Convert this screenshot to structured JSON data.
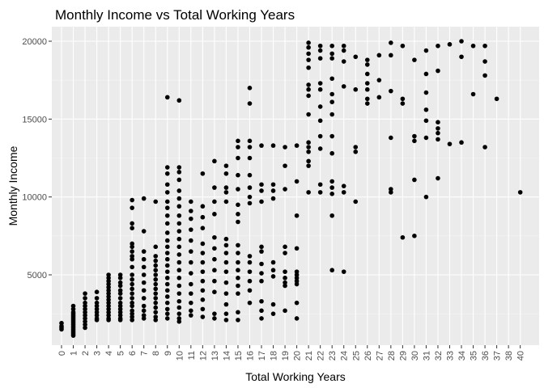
{
  "chart_data": {
    "type": "scatter",
    "title": "Monthly Income vs Total Working Years",
    "xlabel": "Total Working Years",
    "ylabel": "Monthly Income",
    "x_categories": [
      "0",
      "1",
      "2",
      "3",
      "4",
      "5",
      "6",
      "7",
      "8",
      "9",
      "10",
      "11",
      "12",
      "13",
      "14",
      "15",
      "16",
      "17",
      "18",
      "19",
      "20",
      "21",
      "22",
      "23",
      "24",
      "25",
      "26",
      "27",
      "28",
      "29",
      "30",
      "31",
      "32",
      "33",
      "34",
      "35",
      "36",
      "37",
      "38",
      "40"
    ],
    "y_ticks": [
      5000,
      10000,
      15000,
      20000
    ],
    "ylim": [
      1000,
      20000
    ],
    "grid": true,
    "background": "#EBEBEB",
    "point_color": "#000000",
    "points": [
      [
        "0",
        1900
      ],
      [
        "0",
        1700
      ],
      [
        "0",
        1600
      ],
      [
        "0",
        1500
      ],
      [
        "1",
        3000
      ],
      [
        "1",
        2800
      ],
      [
        "1",
        2600
      ],
      [
        "1",
        2500
      ],
      [
        "1",
        2400
      ],
      [
        "1",
        2300
      ],
      [
        "1",
        2200
      ],
      [
        "1",
        2100
      ],
      [
        "1",
        2000
      ],
      [
        "1",
        1900
      ],
      [
        "1",
        1800
      ],
      [
        "1",
        1700
      ],
      [
        "1",
        1600
      ],
      [
        "1",
        1500
      ],
      [
        "1",
        1400
      ],
      [
        "1",
        1300
      ],
      [
        "1",
        1200
      ],
      [
        "1",
        1100
      ],
      [
        "2",
        3800
      ],
      [
        "2",
        3500
      ],
      [
        "2",
        3200
      ],
      [
        "2",
        3000
      ],
      [
        "2",
        2800
      ],
      [
        "2",
        2600
      ],
      [
        "2",
        2400
      ],
      [
        "2",
        2200
      ],
      [
        "2",
        2000
      ],
      [
        "2",
        1800
      ],
      [
        "2",
        1600
      ],
      [
        "3",
        3900
      ],
      [
        "3",
        3500
      ],
      [
        "3",
        3200
      ],
      [
        "3",
        3000
      ],
      [
        "3",
        2800
      ],
      [
        "3",
        2600
      ],
      [
        "3",
        2400
      ],
      [
        "3",
        2200
      ],
      [
        "3",
        2100
      ],
      [
        "4",
        5000
      ],
      [
        "4",
        4800
      ],
      [
        "4",
        4600
      ],
      [
        "4",
        4400
      ],
      [
        "4",
        4200
      ],
      [
        "4",
        4000
      ],
      [
        "4",
        3800
      ],
      [
        "4",
        3600
      ],
      [
        "4",
        3400
      ],
      [
        "4",
        3200
      ],
      [
        "4",
        3000
      ],
      [
        "4",
        2800
      ],
      [
        "4",
        2600
      ],
      [
        "4",
        2400
      ],
      [
        "4",
        2200
      ],
      [
        "4",
        2100
      ],
      [
        "5",
        5000
      ],
      [
        "5",
        4800
      ],
      [
        "5",
        4500
      ],
      [
        "5",
        4300
      ],
      [
        "5",
        4000
      ],
      [
        "5",
        3800
      ],
      [
        "5",
        3500
      ],
      [
        "5",
        3200
      ],
      [
        "5",
        3000
      ],
      [
        "5",
        2800
      ],
      [
        "5",
        2600
      ],
      [
        "5",
        2400
      ],
      [
        "5",
        2200
      ],
      [
        "5",
        2100
      ],
      [
        "6",
        9800
      ],
      [
        "6",
        9300
      ],
      [
        "6",
        8300
      ],
      [
        "6",
        8000
      ],
      [
        "6",
        7000
      ],
      [
        "6",
        6800
      ],
      [
        "6",
        6500
      ],
      [
        "6",
        6200
      ],
      [
        "6",
        6000
      ],
      [
        "6",
        5500
      ],
      [
        "6",
        5000
      ],
      [
        "6",
        4700
      ],
      [
        "6",
        4400
      ],
      [
        "6",
        4100
      ],
      [
        "6",
        3800
      ],
      [
        "6",
        3500
      ],
      [
        "6",
        3200
      ],
      [
        "6",
        3000
      ],
      [
        "6",
        2700
      ],
      [
        "6",
        2500
      ],
      [
        "6",
        2300
      ],
      [
        "6",
        2100
      ],
      [
        "7",
        9900
      ],
      [
        "7",
        7800
      ],
      [
        "7",
        6500
      ],
      [
        "7",
        6000
      ],
      [
        "7",
        5500
      ],
      [
        "7",
        5000
      ],
      [
        "7",
        4500
      ],
      [
        "7",
        4000
      ],
      [
        "7",
        3500
      ],
      [
        "7",
        3000
      ],
      [
        "7",
        2700
      ],
      [
        "7",
        2400
      ],
      [
        "7",
        2200
      ],
      [
        "8",
        9700
      ],
      [
        "8",
        6800
      ],
      [
        "8",
        6200
      ],
      [
        "8",
        5900
      ],
      [
        "8",
        5600
      ],
      [
        "8",
        5300
      ],
      [
        "8",
        5000
      ],
      [
        "8",
        4700
      ],
      [
        "8",
        4400
      ],
      [
        "8",
        4100
      ],
      [
        "8",
        3800
      ],
      [
        "8",
        3500
      ],
      [
        "8",
        3200
      ],
      [
        "8",
        2900
      ],
      [
        "8",
        2600
      ],
      [
        "8",
        2300
      ],
      [
        "8",
        2100
      ],
      [
        "9",
        16400
      ],
      [
        "9",
        11900
      ],
      [
        "9",
        11500
      ],
      [
        "9",
        10800
      ],
      [
        "9",
        10300
      ],
      [
        "9",
        9700
      ],
      [
        "9",
        9300
      ],
      [
        "9",
        8800
      ],
      [
        "9",
        8300
      ],
      [
        "9",
        7700
      ],
      [
        "9",
        7200
      ],
      [
        "9",
        6800
      ],
      [
        "9",
        6400
      ],
      [
        "9",
        6000
      ],
      [
        "9",
        5600
      ],
      [
        "9",
        5200
      ],
      [
        "9",
        4800
      ],
      [
        "9",
        4400
      ],
      [
        "9",
        4000
      ],
      [
        "9",
        3600
      ],
      [
        "9",
        3200
      ],
      [
        "9",
        2800
      ],
      [
        "9",
        2500
      ],
      [
        "9",
        2200
      ],
      [
        "10",
        16200
      ],
      [
        "10",
        11900
      ],
      [
        "10",
        11600
      ],
      [
        "10",
        11100
      ],
      [
        "10",
        10400
      ],
      [
        "10",
        9900
      ],
      [
        "10",
        9400
      ],
      [
        "10",
        8800
      ],
      [
        "10",
        8300
      ],
      [
        "10",
        7800
      ],
      [
        "10",
        7300
      ],
      [
        "10",
        6800
      ],
      [
        "10",
        6300
      ],
      [
        "10",
        5800
      ],
      [
        "10",
        5300
      ],
      [
        "10",
        4800
      ],
      [
        "10",
        4300
      ],
      [
        "10",
        3800
      ],
      [
        "10",
        3300
      ],
      [
        "10",
        2900
      ],
      [
        "10",
        2500
      ],
      [
        "10",
        2200
      ],
      [
        "10",
        2000
      ],
      [
        "11",
        9700
      ],
      [
        "11",
        9100
      ],
      [
        "11",
        8600
      ],
      [
        "11",
        7900
      ],
      [
        "11",
        7200
      ],
      [
        "11",
        6500
      ],
      [
        "11",
        5800
      ],
      [
        "11",
        5100
      ],
      [
        "11",
        4400
      ],
      [
        "11",
        3800
      ],
      [
        "11",
        3200
      ],
      [
        "11",
        2700
      ],
      [
        "11",
        2400
      ],
      [
        "12",
        11500
      ],
      [
        "12",
        9400
      ],
      [
        "12",
        8700
      ],
      [
        "12",
        8000
      ],
      [
        "12",
        7000
      ],
      [
        "12",
        6400
      ],
      [
        "12",
        5800
      ],
      [
        "12",
        5200
      ],
      [
        "12",
        4600
      ],
      [
        "12",
        4000
      ],
      [
        "12",
        3400
      ],
      [
        "12",
        2800
      ],
      [
        "12",
        2300
      ],
      [
        "13",
        12300
      ],
      [
        "13",
        10600
      ],
      [
        "13",
        9700
      ],
      [
        "13",
        8900
      ],
      [
        "13",
        7400
      ],
      [
        "13",
        6700
      ],
      [
        "13",
        6000
      ],
      [
        "13",
        5300
      ],
      [
        "13",
        4600
      ],
      [
        "13",
        3900
      ],
      [
        "13",
        2500
      ],
      [
        "13",
        2200
      ],
      [
        "14",
        12000
      ],
      [
        "14",
        11500
      ],
      [
        "14",
        10600
      ],
      [
        "14",
        10300
      ],
      [
        "14",
        9700
      ],
      [
        "14",
        7300
      ],
      [
        "14",
        6900
      ],
      [
        "14",
        6400
      ],
      [
        "14",
        5800
      ],
      [
        "14",
        5200
      ],
      [
        "14",
        4500
      ],
      [
        "14",
        3800
      ],
      [
        "14",
        3100
      ],
      [
        "14",
        2500
      ],
      [
        "14",
        2100
      ],
      [
        "15",
        13600
      ],
      [
        "15",
        13200
      ],
      [
        "15",
        12500
      ],
      [
        "15",
        11400
      ],
      [
        "15",
        10500
      ],
      [
        "15",
        9500
      ],
      [
        "15",
        8900
      ],
      [
        "15",
        8400
      ],
      [
        "15",
        6900
      ],
      [
        "15",
        6400
      ],
      [
        "15",
        5800
      ],
      [
        "15",
        5300
      ],
      [
        "15",
        4800
      ],
      [
        "15",
        4300
      ],
      [
        "15",
        3800
      ],
      [
        "15",
        2600
      ],
      [
        "15",
        2100
      ],
      [
        "16",
        17000
      ],
      [
        "16",
        16000
      ],
      [
        "16",
        13600
      ],
      [
        "16",
        13200
      ],
      [
        "16",
        12500
      ],
      [
        "16",
        11400
      ],
      [
        "16",
        10600
      ],
      [
        "16",
        10000
      ],
      [
        "16",
        9600
      ],
      [
        "16",
        6200
      ],
      [
        "16",
        5800
      ],
      [
        "16",
        5200
      ],
      [
        "16",
        4600
      ],
      [
        "16",
        4000
      ],
      [
        "16",
        3200
      ],
      [
        "17",
        13300
      ],
      [
        "17",
        10800
      ],
      [
        "17",
        10400
      ],
      [
        "17",
        9700
      ],
      [
        "17",
        6800
      ],
      [
        "17",
        6500
      ],
      [
        "17",
        5700
      ],
      [
        "17",
        5100
      ],
      [
        "17",
        4600
      ],
      [
        "17",
        3300
      ],
      [
        "17",
        2700
      ],
      [
        "17",
        2200
      ],
      [
        "18",
        13300
      ],
      [
        "18",
        10800
      ],
      [
        "18",
        10400
      ],
      [
        "18",
        9900
      ],
      [
        "18",
        5800
      ],
      [
        "18",
        5300
      ],
      [
        "18",
        4900
      ],
      [
        "18",
        3100
      ],
      [
        "18",
        2500
      ],
      [
        "19",
        13200
      ],
      [
        "19",
        12000
      ],
      [
        "19",
        10500
      ],
      [
        "19",
        6800
      ],
      [
        "19",
        6400
      ],
      [
        "19",
        5200
      ],
      [
        "19",
        4800
      ],
      [
        "19",
        4500
      ],
      [
        "19",
        4300
      ],
      [
        "19",
        2700
      ],
      [
        "20",
        13300
      ],
      [
        "20",
        11000
      ],
      [
        "20",
        8800
      ],
      [
        "20",
        6700
      ],
      [
        "20",
        5200
      ],
      [
        "20",
        5000
      ],
      [
        "20",
        4800
      ],
      [
        "20",
        4600
      ],
      [
        "20",
        4400
      ],
      [
        "20",
        3200
      ],
      [
        "20",
        2200
      ],
      [
        "21",
        19900
      ],
      [
        "21",
        19600
      ],
      [
        "21",
        19200
      ],
      [
        "21",
        18800
      ],
      [
        "21",
        18300
      ],
      [
        "21",
        17200
      ],
      [
        "21",
        16900
      ],
      [
        "21",
        16500
      ],
      [
        "21",
        15300
      ],
      [
        "21",
        13500
      ],
      [
        "21",
        13200
      ],
      [
        "21",
        12900
      ],
      [
        "21",
        12300
      ],
      [
        "21",
        12000
      ],
      [
        "21",
        10300
      ],
      [
        "22",
        19700
      ],
      [
        "22",
        19400
      ],
      [
        "22",
        18900
      ],
      [
        "22",
        17300
      ],
      [
        "22",
        16900
      ],
      [
        "22",
        15800
      ],
      [
        "22",
        14900
      ],
      [
        "22",
        13900
      ],
      [
        "22",
        13100
      ],
      [
        "22",
        10800
      ],
      [
        "22",
        10300
      ],
      [
        "23",
        19700
      ],
      [
        "23",
        19200
      ],
      [
        "23",
        18900
      ],
      [
        "23",
        17600
      ],
      [
        "23",
        16600
      ],
      [
        "23",
        16100
      ],
      [
        "23",
        15300
      ],
      [
        "23",
        13900
      ],
      [
        "23",
        12800
      ],
      [
        "23",
        11000
      ],
      [
        "23",
        10600
      ],
      [
        "23",
        10200
      ],
      [
        "23",
        8800
      ],
      [
        "23",
        5300
      ],
      [
        "24",
        19700
      ],
      [
        "24",
        19400
      ],
      [
        "24",
        18700
      ],
      [
        "24",
        17100
      ],
      [
        "24",
        10700
      ],
      [
        "24",
        10300
      ],
      [
        "24",
        5200
      ],
      [
        "25",
        19000
      ],
      [
        "25",
        16900
      ],
      [
        "25",
        13200
      ],
      [
        "25",
        12900
      ],
      [
        "25",
        9700
      ],
      [
        "26",
        18800
      ],
      [
        "26",
        18500
      ],
      [
        "26",
        17900
      ],
      [
        "26",
        17300
      ],
      [
        "26",
        16900
      ],
      [
        "26",
        16300
      ],
      [
        "26",
        16000
      ],
      [
        "27",
        19100
      ],
      [
        "27",
        17500
      ],
      [
        "27",
        16400
      ],
      [
        "28",
        19900
      ],
      [
        "28",
        19100
      ],
      [
        "28",
        16800
      ],
      [
        "28",
        13800
      ],
      [
        "28",
        10500
      ],
      [
        "28",
        10300
      ],
      [
        "29",
        19700
      ],
      [
        "29",
        16300
      ],
      [
        "29",
        16000
      ],
      [
        "29",
        7400
      ],
      [
        "30",
        18800
      ],
      [
        "30",
        13900
      ],
      [
        "30",
        13600
      ],
      [
        "30",
        11100
      ],
      [
        "30",
        7500
      ],
      [
        "31",
        19400
      ],
      [
        "31",
        17900
      ],
      [
        "31",
        16700
      ],
      [
        "31",
        15600
      ],
      [
        "31",
        14900
      ],
      [
        "31",
        13800
      ],
      [
        "31",
        10000
      ],
      [
        "32",
        19700
      ],
      [
        "32",
        18100
      ],
      [
        "32",
        14800
      ],
      [
        "32",
        14400
      ],
      [
        "32",
        14100
      ],
      [
        "32",
        13700
      ],
      [
        "32",
        11200
      ],
      [
        "33",
        19800
      ],
      [
        "33",
        13400
      ],
      [
        "34",
        20000
      ],
      [
        "34",
        19000
      ],
      [
        "34",
        13500
      ],
      [
        "35",
        19700
      ],
      [
        "35",
        16600
      ],
      [
        "36",
        19700
      ],
      [
        "36",
        18700
      ],
      [
        "36",
        17800
      ],
      [
        "36",
        13200
      ],
      [
        "37",
        16300
      ],
      [
        "40",
        10300
      ]
    ]
  }
}
